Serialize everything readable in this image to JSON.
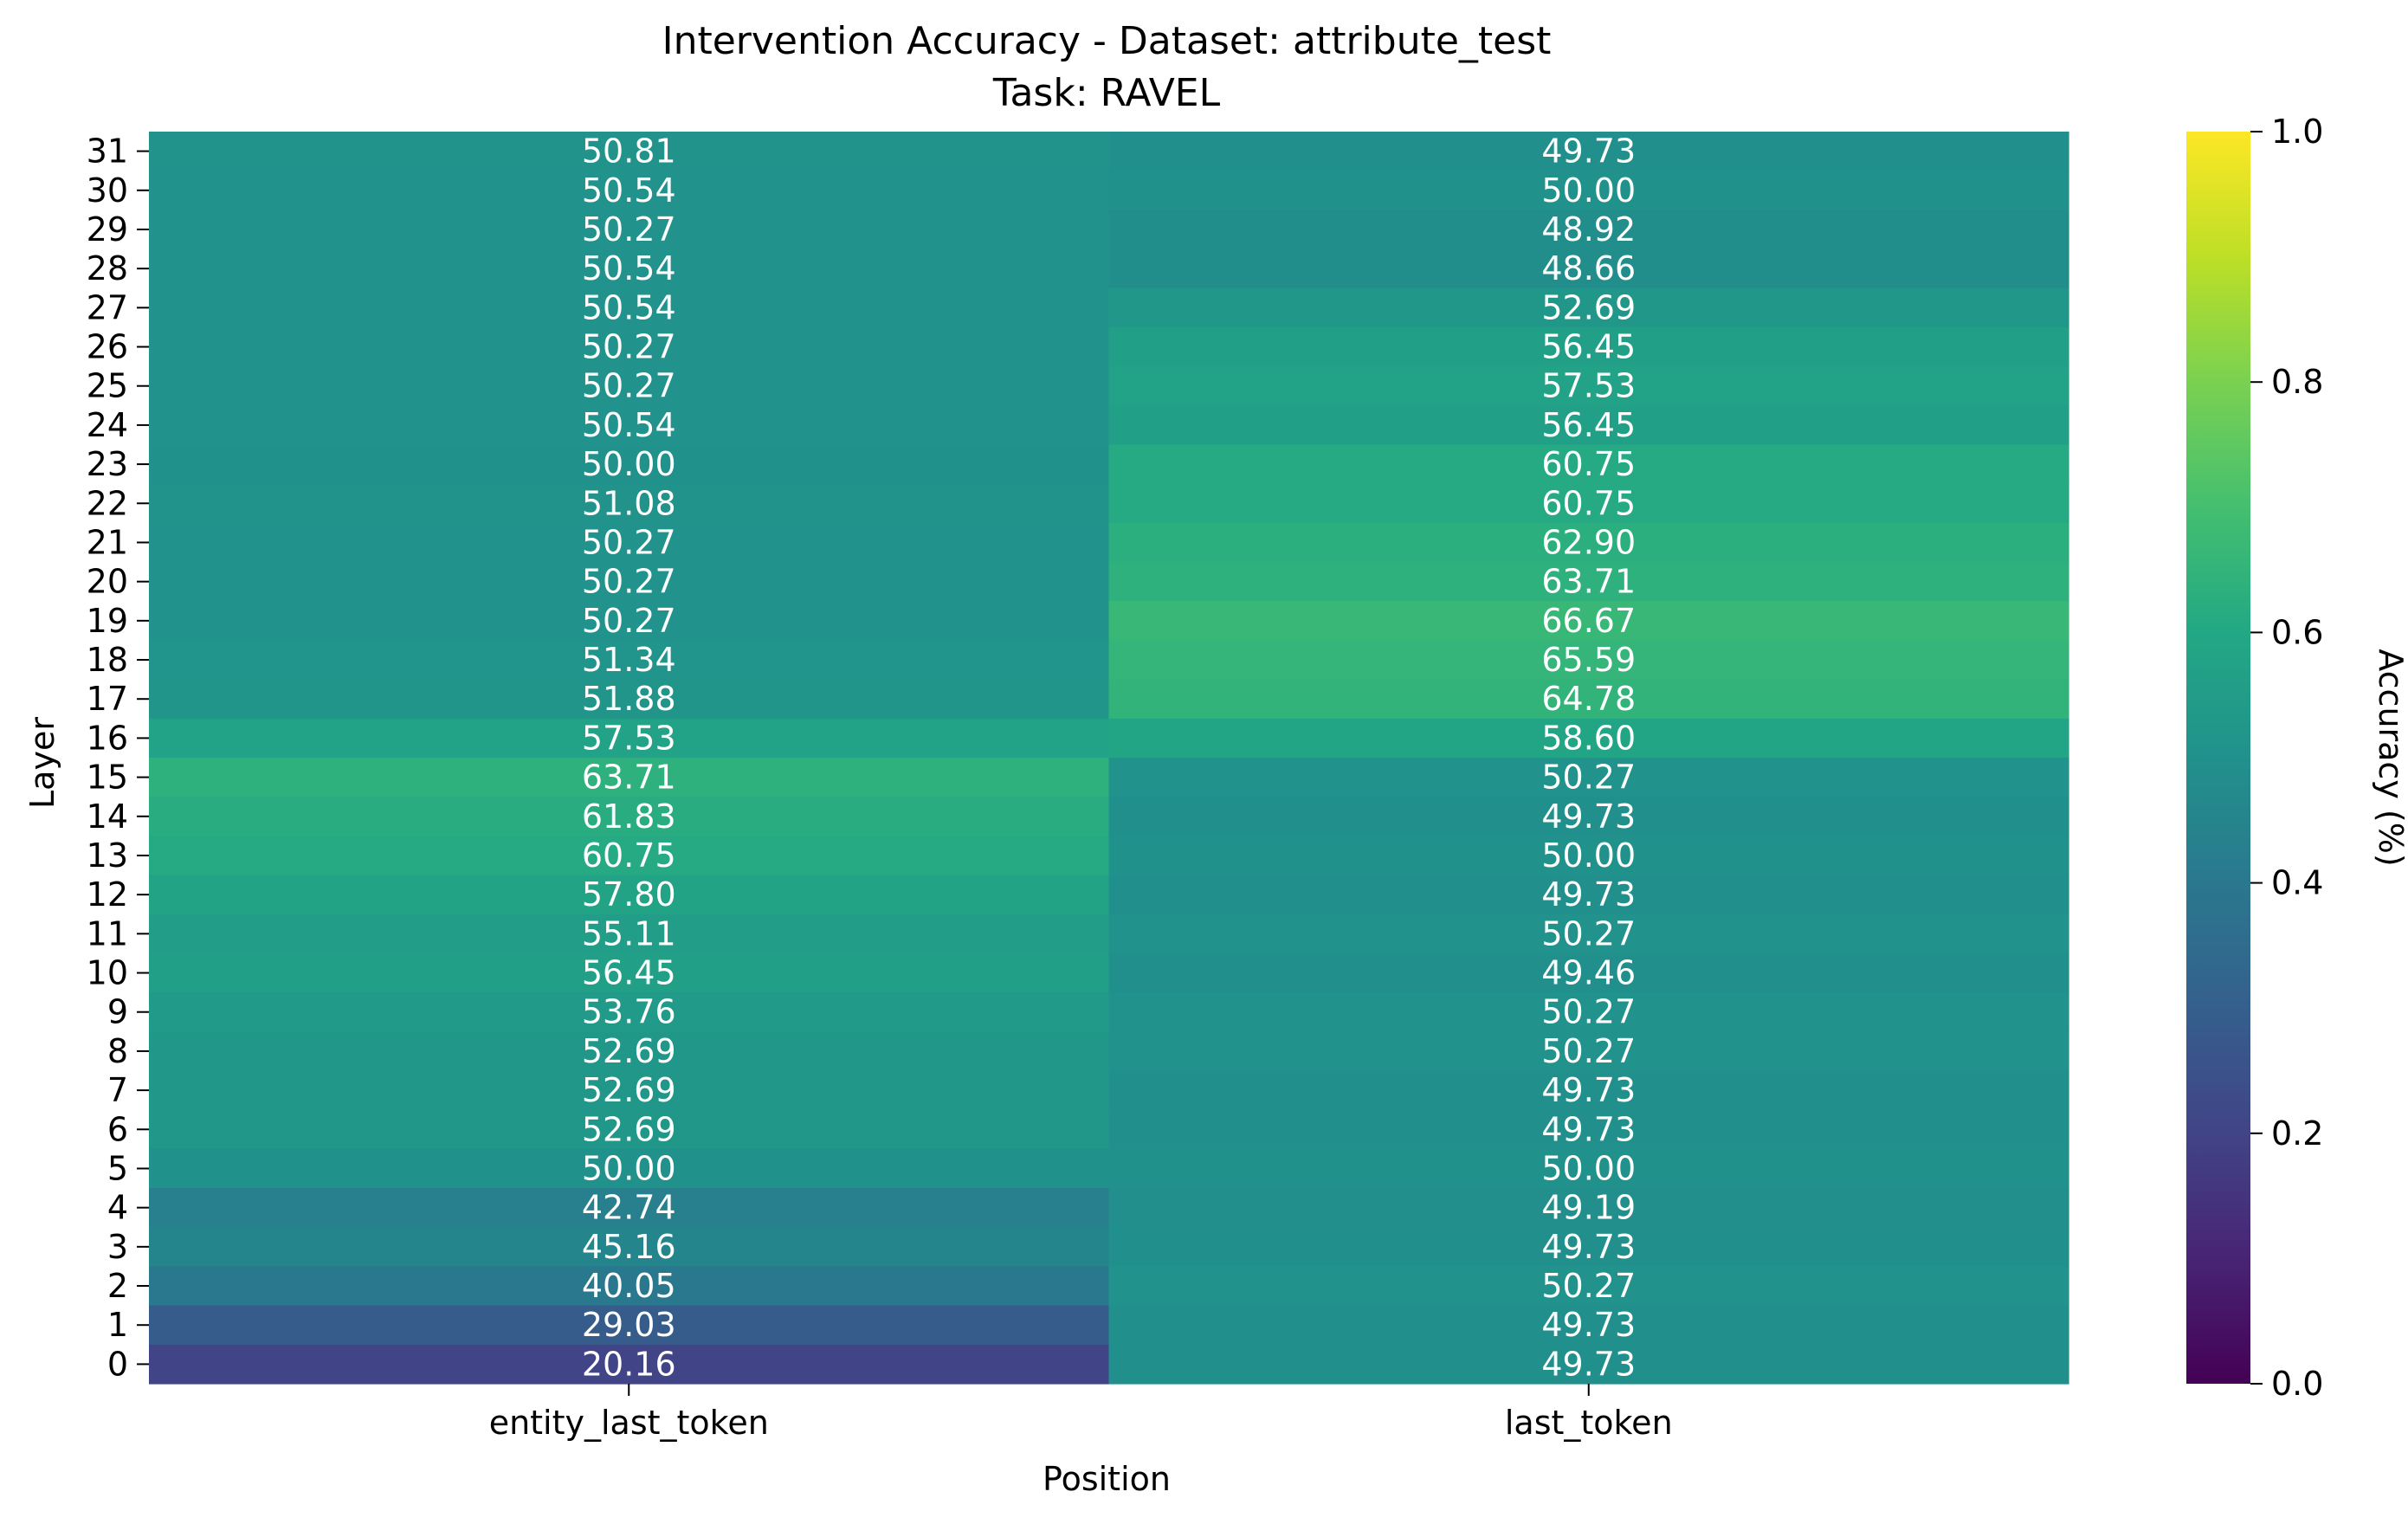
{
  "chart_data": {
    "type": "heatmap",
    "title": "Intervention Accuracy - Dataset: attribute_test",
    "subtitle": "Task: RAVEL",
    "xlabel": "Position",
    "ylabel": "Layer",
    "x_categories": [
      "entity_last_token",
      "last_token"
    ],
    "y_categories": [
      "31",
      "30",
      "29",
      "28",
      "27",
      "26",
      "25",
      "24",
      "23",
      "22",
      "21",
      "20",
      "19",
      "18",
      "17",
      "16",
      "15",
      "14",
      "13",
      "12",
      "11",
      "10",
      "9",
      "8",
      "7",
      "6",
      "5",
      "4",
      "3",
      "2",
      "1",
      "0"
    ],
    "values": [
      [
        50.81,
        49.73
      ],
      [
        50.54,
        50.0
      ],
      [
        50.27,
        48.92
      ],
      [
        50.54,
        48.66
      ],
      [
        50.54,
        52.69
      ],
      [
        50.27,
        56.45
      ],
      [
        50.27,
        57.53
      ],
      [
        50.54,
        56.45
      ],
      [
        50.0,
        60.75
      ],
      [
        51.08,
        60.75
      ],
      [
        50.27,
        62.9
      ],
      [
        50.27,
        63.71
      ],
      [
        50.27,
        66.67
      ],
      [
        51.34,
        65.59
      ],
      [
        51.88,
        64.78
      ],
      [
        57.53,
        58.6
      ],
      [
        63.71,
        50.27
      ],
      [
        61.83,
        49.73
      ],
      [
        60.75,
        50.0
      ],
      [
        57.8,
        49.73
      ],
      [
        55.11,
        50.27
      ],
      [
        56.45,
        49.46
      ],
      [
        53.76,
        50.27
      ],
      [
        52.69,
        50.27
      ],
      [
        52.69,
        49.73
      ],
      [
        52.69,
        49.73
      ],
      [
        50.0,
        50.0
      ],
      [
        42.74,
        49.19
      ],
      [
        45.16,
        49.73
      ],
      [
        40.05,
        50.27
      ],
      [
        29.03,
        49.73
      ],
      [
        20.16,
        49.73
      ]
    ],
    "colorbar": {
      "label": "Accuracy (%)",
      "range": [
        0.0,
        1.0
      ],
      "ticks": [
        "0.0",
        "0.2",
        "0.4",
        "0.6",
        "0.8",
        "1.0"
      ],
      "colormap": "viridis"
    },
    "grid": false,
    "legend": "none"
  }
}
